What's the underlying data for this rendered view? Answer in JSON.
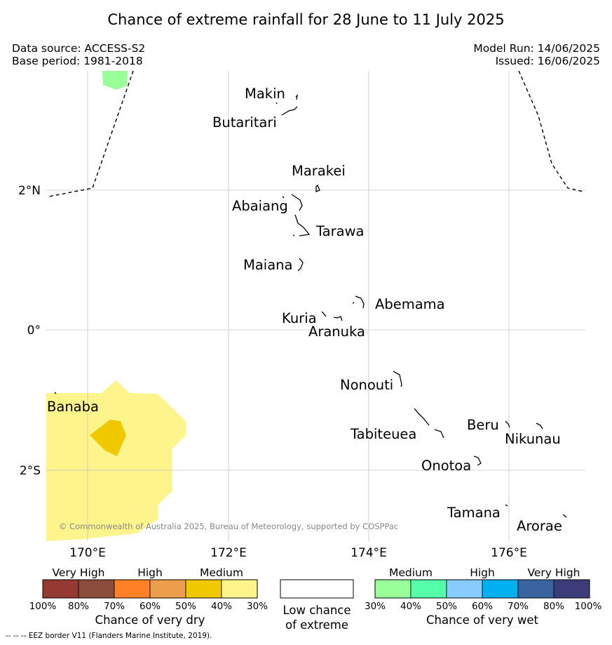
{
  "title": "Chance of extreme rainfall for 28 June to 11 July 2025",
  "meta": {
    "source": "Data source: ACCESS-S2",
    "base_period": "Base period: 1981-2018",
    "model_run": "Model Run: 14/06/2025",
    "issued": "Issued: 16/06/2025"
  },
  "map": {
    "lat_labels": [
      "2°N",
      "0°",
      "2°S"
    ],
    "lon_labels": [
      "170°E",
      "172°E",
      "174°E",
      "176°E"
    ],
    "islands": [
      "Makin",
      "Butaritari",
      "Marakei",
      "Abaiang",
      "Tarawa",
      "Maiana",
      "Abemama",
      "Kuria",
      "Aranuka",
      "Nonouti",
      "Banaba",
      "Beru",
      "Tabiteuea",
      "Nikunau",
      "Onotoa",
      "Tamana",
      "Arorae"
    ],
    "copyright": "© Commonwealth of Australia 2025, Bureau of Meteorology, supported by COSPPac",
    "colors": {
      "very_dry_60_70": "#fdf48c",
      "very_dry_40_50": "#efc800",
      "very_wet_30_40": "#99ff99"
    }
  },
  "legend": {
    "dry": {
      "categories": [
        "Very High",
        "High",
        "Medium"
      ],
      "ticks": [
        "100%",
        "80%",
        "70%",
        "60%",
        "50%",
        "40%",
        "30%"
      ],
      "colors": [
        "#943a32",
        "#8b4c3b",
        "#fe8127",
        "#ec9e4d",
        "#efc800",
        "#fdf48c"
      ],
      "title": "Chance of very dry"
    },
    "neutral": {
      "title_line1": "Low chance",
      "title_line2": "of extreme",
      "color": "#ffffff"
    },
    "wet": {
      "categories": [
        "Medium",
        "High",
        "Very High"
      ],
      "ticks": [
        "30%",
        "40%",
        "50%",
        "60%",
        "70%",
        "80%",
        "100%"
      ],
      "colors": [
        "#99ff99",
        "#55ffaa",
        "#88ccff",
        "#00b0f0",
        "#3a64a0",
        "#3c3c7a"
      ],
      "title": "Chance of very wet"
    }
  },
  "footer": "--  --  -- EEZ border V11 (Flanders Marine Institute, 2019)."
}
